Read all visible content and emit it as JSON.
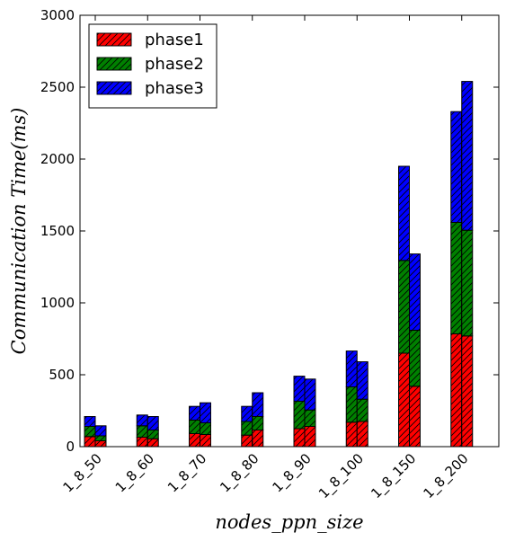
{
  "chart_data": {
    "type": "bar",
    "stacked": true,
    "xlabel": "nodes_ppn_size",
    "ylabel": "Communication Time(ms)",
    "ylim": [
      0,
      3000
    ],
    "yticks": [
      0,
      500,
      1000,
      1500,
      2000,
      2500,
      3000
    ],
    "categories": [
      "1_8_50",
      "1_8_60",
      "1_8_70",
      "1_8_80",
      "1_8_90",
      "1_8_100",
      "1_8_150",
      "1_8_200"
    ],
    "bars_per_category": 2,
    "legend_position": "top-left",
    "hatch": "diagonal",
    "series": [
      {
        "name": "phase1",
        "color": "#ff0000",
        "values": [
          [
            70,
            40
          ],
          [
            65,
            55
          ],
          [
            90,
            85
          ],
          [
            80,
            115
          ],
          [
            125,
            140
          ],
          [
            170,
            175
          ],
          [
            650,
            420
          ],
          [
            785,
            770
          ]
        ]
      },
      {
        "name": "phase2",
        "color": "#008000",
        "values": [
          [
            70,
            35
          ],
          [
            80,
            60
          ],
          [
            95,
            80
          ],
          [
            95,
            95
          ],
          [
            190,
            115
          ],
          [
            245,
            155
          ],
          [
            645,
            390
          ],
          [
            775,
            735
          ]
        ]
      },
      {
        "name": "phase3",
        "color": "#0000ff",
        "values": [
          [
            70,
            70
          ],
          [
            75,
            95
          ],
          [
            95,
            140
          ],
          [
            105,
            165
          ],
          [
            175,
            215
          ],
          [
            250,
            260
          ],
          [
            655,
            530
          ],
          [
            770,
            1035
          ]
        ]
      }
    ]
  }
}
